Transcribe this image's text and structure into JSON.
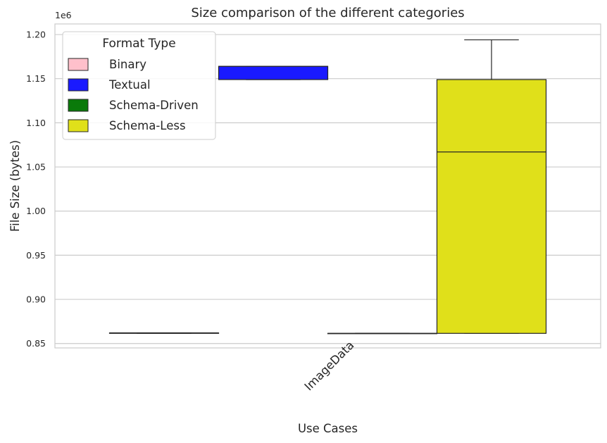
{
  "chart_data": {
    "type": "box",
    "title": "Size comparison of the different categories",
    "xlabel": "Use Cases",
    "ylabel": "File Size (bytes)",
    "y_offset_label": "1e6",
    "categories": [
      "ImageData"
    ],
    "ylim": [
      845000,
      1212000
    ],
    "yticks": [
      850000,
      900000,
      950000,
      1000000,
      1050000,
      1100000,
      1150000,
      1200000
    ],
    "ytick_labels": [
      "0.85",
      "0.90",
      "0.95",
      "1.00",
      "1.05",
      "1.10",
      "1.15",
      "1.20"
    ],
    "grid": true,
    "legend": {
      "title": "Format Type",
      "placement": "top-left",
      "entries": [
        {
          "label": "Binary",
          "color": "#ffc0cb"
        },
        {
          "label": "Textual",
          "color": "#1a1aff"
        },
        {
          "label": "Schema-Driven",
          "color": "#0a7a0a"
        },
        {
          "label": "Schema-Less",
          "color": "#e0e01a"
        }
      ]
    },
    "series": [
      {
        "name": "Binary",
        "color": "#ffc0cb",
        "category": "ImageData",
        "whisker_low": 861500,
        "q1": 861500,
        "median": 862000,
        "q3": 862000,
        "whisker_high": 862000
      },
      {
        "name": "Textual",
        "color": "#1a1aff",
        "category": "ImageData",
        "whisker_low": 1149000,
        "q1": 1149000,
        "median": 1164000,
        "q3": 1164000,
        "whisker_high": 1164000
      },
      {
        "name": "Schema-Driven",
        "color": "#0a7a0a",
        "category": "ImageData",
        "whisker_low": 861500,
        "q1": 861500,
        "median": 861500,
        "q3": 861500,
        "whisker_high": 861500
      },
      {
        "name": "Schema-Less",
        "color": "#e0e01a",
        "category": "ImageData",
        "whisker_low": 861500,
        "q1": 861500,
        "median": 1067000,
        "q3": 1149000,
        "whisker_high": 1194000
      }
    ]
  }
}
